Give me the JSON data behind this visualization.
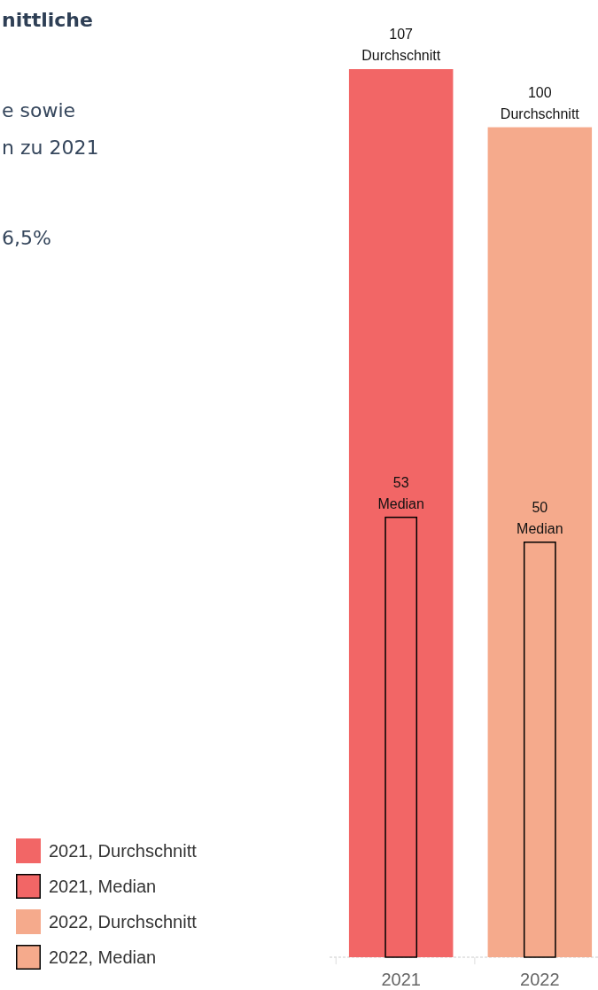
{
  "chart_data": {
    "type": "bar",
    "title": "nittliche",
    "subtitle": "e sowie\nn zu 2021",
    "annotations": [
      "6,5%"
    ],
    "categories": [
      "2021",
      "2022"
    ],
    "series": [
      {
        "name": "2021, Durchschnitt",
        "color": "#f26666",
        "values": [
          107,
          null
        ],
        "value_labels": [
          "107\nDurchschnitt",
          null
        ]
      },
      {
        "name": "2021, Median",
        "color": "#f26666",
        "values": [
          53,
          null
        ],
        "value_labels": [
          "53\nMedian",
          null
        ]
      },
      {
        "name": "2022, Durchschnitt",
        "color": "#f5aa8c",
        "values": [
          null,
          100
        ],
        "value_labels": [
          null,
          "100\nDurchschnitt"
        ]
      },
      {
        "name": "2022, Median",
        "color": "#f5aa8c",
        "values": [
          null,
          50
        ],
        "value_labels": [
          null,
          "50\nMedian"
        ]
      }
    ],
    "legend": "bottom left"
  }
}
